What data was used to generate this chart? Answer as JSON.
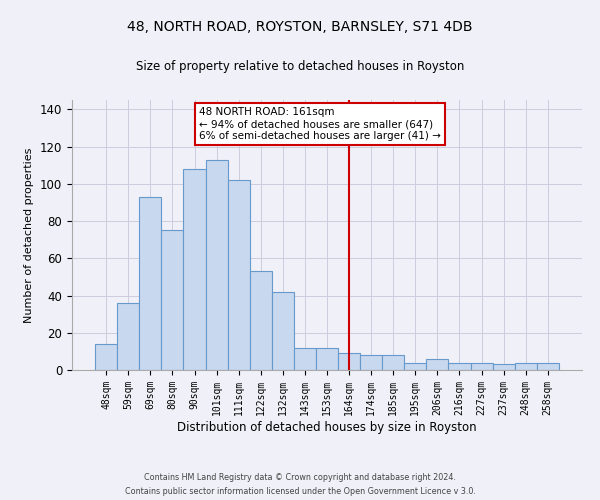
{
  "title": "48, NORTH ROAD, ROYSTON, BARNSLEY, S71 4DB",
  "subtitle": "Size of property relative to detached houses in Royston",
  "xlabel": "Distribution of detached houses by size in Royston",
  "ylabel": "Number of detached properties",
  "bar_labels": [
    "48sqm",
    "59sqm",
    "69sqm",
    "80sqm",
    "90sqm",
    "101sqm",
    "111sqm",
    "122sqm",
    "132sqm",
    "143sqm",
    "153sqm",
    "164sqm",
    "174sqm",
    "185sqm",
    "195sqm",
    "206sqm",
    "216sqm",
    "227sqm",
    "237sqm",
    "248sqm",
    "258sqm"
  ],
  "bar_values": [
    14,
    36,
    93,
    75,
    108,
    113,
    102,
    53,
    42,
    12,
    12,
    9,
    8,
    8,
    4,
    6,
    4,
    4,
    3,
    4,
    4
  ],
  "bar_color": "#c8d8ee",
  "bar_edge_color": "#6699cc",
  "ylim": [
    0,
    145
  ],
  "yticks": [
    0,
    20,
    40,
    60,
    80,
    100,
    120,
    140
  ],
  "vline_index": 11,
  "vline_color": "#cc0000",
  "annotation_title": "48 NORTH ROAD: 161sqm",
  "annotation_line1": "← 94% of detached houses are smaller (647)",
  "annotation_line2": "6% of semi-detached houses are larger (41) →",
  "annotation_box_color": "#cc0000",
  "footer_line1": "Contains HM Land Registry data © Crown copyright and database right 2024.",
  "footer_line2": "Contains public sector information licensed under the Open Government Licence v 3.0.",
  "background_color": "#f0f0f8",
  "grid_color": "#ccccdd"
}
